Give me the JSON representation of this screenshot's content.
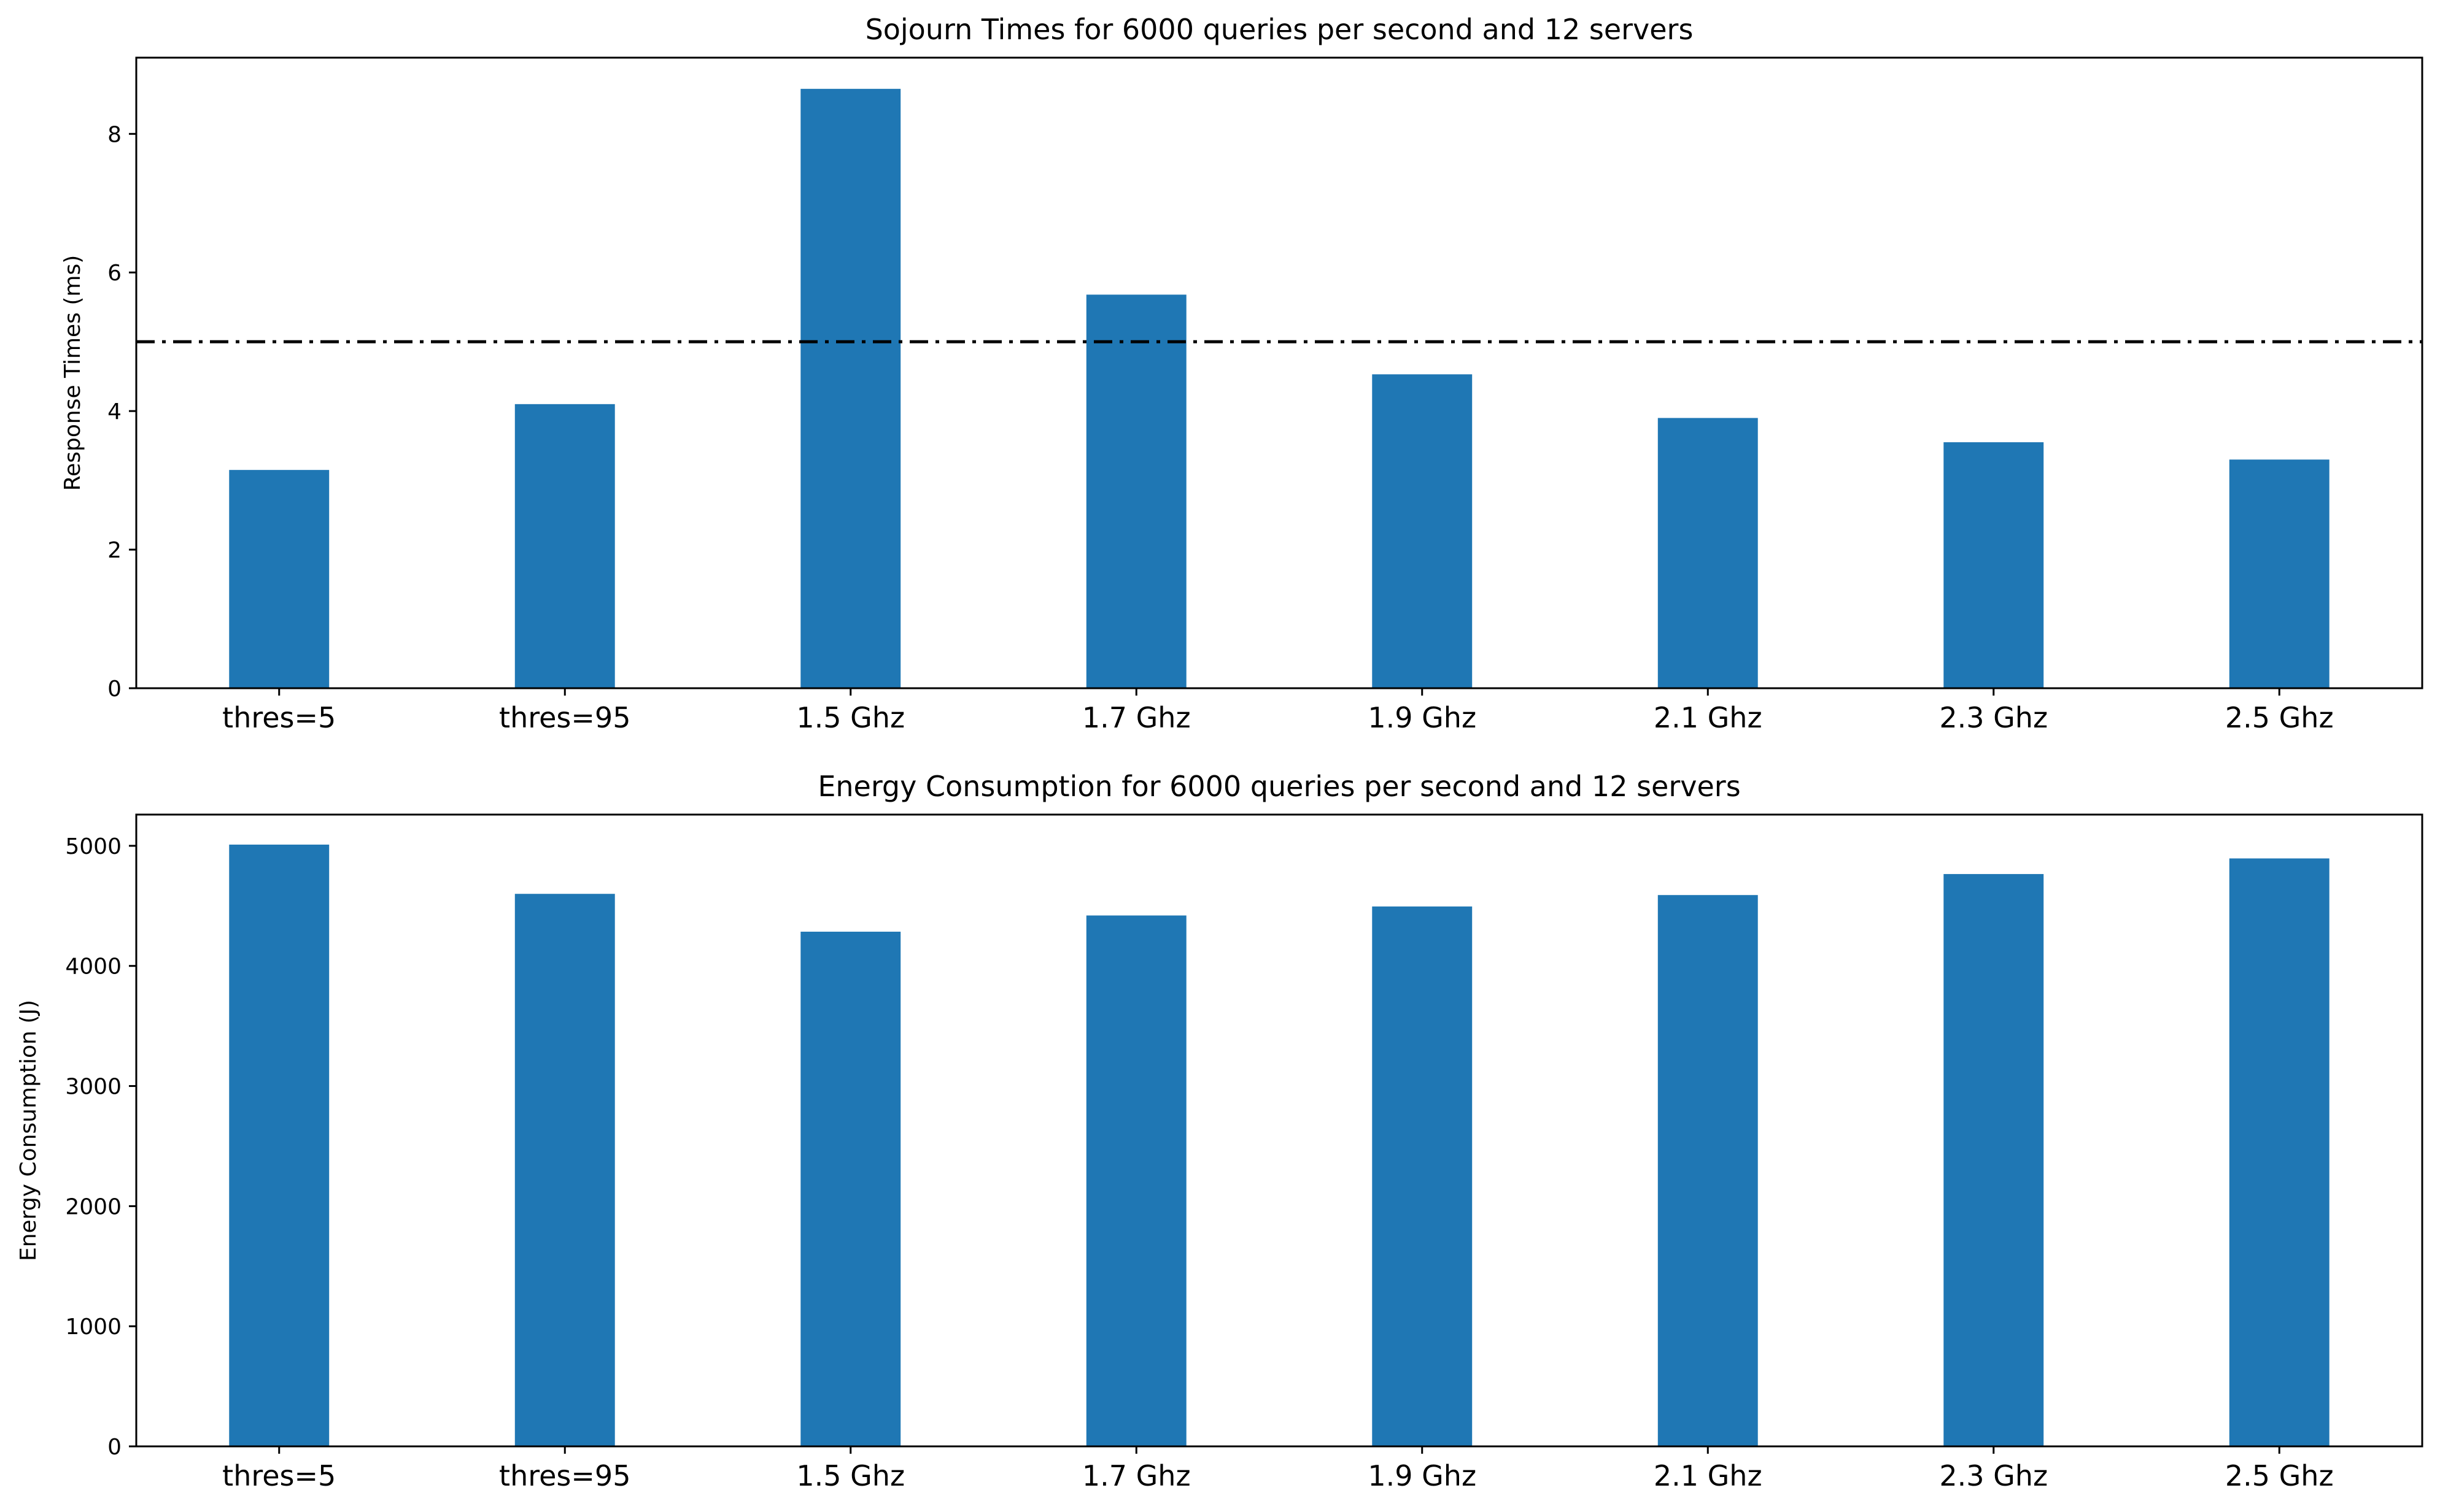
{
  "chart_data": [
    {
      "type": "bar",
      "title": "Sojourn Times for 6000 queries per second and 12 servers",
      "xlabel": "",
      "ylabel": "Response Times (ms)",
      "categories": [
        "thres=5",
        "thres=95",
        "1.5 Ghz",
        "1.7 Ghz",
        "1.9 Ghz",
        "2.1 Ghz",
        "2.3 Ghz",
        "2.5 Ghz"
      ],
      "values": [
        3.15,
        4.1,
        8.65,
        5.68,
        4.53,
        3.9,
        3.55,
        3.3
      ],
      "ylim": [
        0,
        9.1
      ],
      "yticks": [
        0,
        2,
        4,
        6,
        8
      ],
      "bar_color": "#1f77b4",
      "reference_line": {
        "y": 5,
        "style": "dash-dot",
        "color": "#000000"
      },
      "grid": false,
      "legend": "none"
    },
    {
      "type": "bar",
      "title": "Energy Consumption for 6000 queries per second and 12 servers",
      "xlabel": "",
      "ylabel": "Energy Consumption (J)",
      "categories": [
        "thres=5",
        "thres=95",
        "1.5 Ghz",
        "1.7 Ghz",
        "1.9 Ghz",
        "2.1 Ghz",
        "2.3 Ghz",
        "2.5 Ghz"
      ],
      "values": [
        5010,
        4600,
        4285,
        4420,
        4495,
        4590,
        4765,
        4895
      ],
      "ylim": [
        0,
        5260
      ],
      "yticks": [
        0,
        1000,
        2000,
        3000,
        4000,
        5000
      ],
      "bar_color": "#1f77b4",
      "grid": false,
      "legend": "none"
    }
  ]
}
